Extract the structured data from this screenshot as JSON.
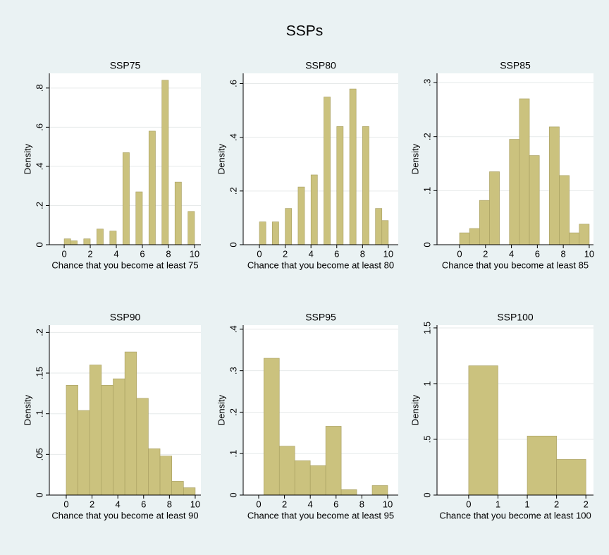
{
  "title": "SSPs",
  "chart_data": [
    {
      "type": "histogram",
      "title": "SSP75",
      "x_label": "Chance that you become at least 75",
      "y_label": "Density",
      "bins": [
        0,
        0.5,
        1,
        1.5,
        2,
        2.5,
        3,
        3.5,
        4,
        4.5,
        5,
        5.5,
        6,
        6.5,
        7,
        7.5,
        8,
        8.5,
        9,
        9.5,
        10
      ],
      "values": [
        0.03,
        0.02,
        0,
        0.03,
        0,
        0.08,
        0,
        0.07,
        0,
        0.47,
        0,
        0.27,
        0,
        0.58,
        0,
        0.84,
        0,
        0.32,
        0,
        0.17
      ],
      "color": "#cbc27e",
      "xlim": [
        -1.14,
        10.49
      ],
      "ylim": [
        0,
        0.875
      ],
      "xticks": [
        0,
        2,
        4,
        6,
        8,
        10
      ],
      "yticks": [
        0,
        {
          "value": 0.2,
          "label": ".2"
        },
        {
          "value": 0.4,
          "label": ".4"
        },
        {
          "value": 0.6,
          "label": ".6"
        },
        {
          "value": 0.8,
          "label": ".8"
        }
      ],
      "grid": true
    },
    {
      "type": "histogram",
      "title": "SSP80",
      "x_label": "Chance that you become at least 80",
      "y_label": "Density",
      "bins": [
        0,
        0.5,
        1,
        1.5,
        2,
        2.5,
        3,
        3.5,
        4,
        4.5,
        5,
        5.5,
        6,
        6.5,
        7,
        7.5,
        8,
        8.5,
        9,
        9.5,
        10
      ],
      "values": [
        0.085,
        0,
        0.085,
        0,
        0.135,
        0,
        0.215,
        0,
        0.26,
        0,
        0.55,
        0,
        0.44,
        0,
        0.58,
        0,
        0.44,
        0,
        0.135,
        0.09
      ],
      "color": "#cbc27e",
      "xlim": [
        -1.26,
        10.77
      ],
      "ylim": [
        0,
        0.638
      ],
      "xticks": [
        0,
        2,
        4,
        6,
        8,
        10
      ],
      "yticks": [
        0,
        {
          "value": 0.2,
          "label": ".2"
        },
        {
          "value": 0.4,
          "label": ".4"
        },
        {
          "value": 0.6,
          "label": ".6"
        }
      ],
      "grid": true
    },
    {
      "type": "histogram",
      "title": "SSP85",
      "x_label": "Chance that you become at least 85",
      "y_label": "Density",
      "bins": [
        0,
        0.769,
        1.538,
        2.308,
        3.077,
        3.846,
        4.615,
        5.385,
        6.154,
        6.923,
        7.692,
        8.462,
        9.231,
        10
      ],
      "values": [
        0.022,
        0.03,
        0.082,
        0.135,
        0,
        0.195,
        0.27,
        0.165,
        0,
        0.218,
        0.128,
        0.022,
        0.038
      ],
      "color": "#cbc27e",
      "xlim": [
        -1.74,
        10.33
      ],
      "ylim": [
        0,
        0.317
      ],
      "xticks": [
        0,
        2,
        4,
        6,
        8,
        10
      ],
      "yticks": [
        0,
        {
          "value": 0.1,
          "label": ".1"
        },
        {
          "value": 0.2,
          "label": ".2"
        },
        {
          "value": 0.3,
          "label": ".3"
        }
      ],
      "grid": true
    },
    {
      "type": "histogram",
      "title": "SSP90",
      "x_label": "Chance that you become at least 90",
      "y_label": "Density",
      "bins": [
        0,
        0.909,
        1.818,
        2.727,
        3.636,
        4.545,
        5.455,
        6.364,
        7.273,
        8.182,
        9.091,
        10
      ],
      "values": [
        0.135,
        0.104,
        0.16,
        0.135,
        0.143,
        0.176,
        0.119,
        0.057,
        0.048,
        0.017,
        0.009
      ],
      "color": "#cbc27e",
      "xlim": [
        -1.31,
        10.44
      ],
      "ylim": [
        0,
        0.209
      ],
      "xticks": [
        0,
        2,
        4,
        6,
        8,
        10
      ],
      "yticks": [
        0,
        {
          "value": 0.05,
          "label": ".05"
        },
        {
          "value": 0.1,
          "label": ".1"
        },
        {
          "value": 0.15,
          "label": ".15"
        },
        {
          "value": 0.2,
          "label": ".2"
        }
      ],
      "grid": true
    },
    {
      "type": "histogram",
      "title": "SSP95",
      "x_label": "Chance that you become at least 95",
      "y_label": "Density",
      "bins": [
        0.4,
        1.6,
        2.8,
        4.0,
        5.2,
        6.4,
        7.6,
        8.8,
        10.0
      ],
      "values": [
        0.33,
        0.118,
        0.083,
        0.071,
        0.166,
        0.013,
        0,
        0.023
      ],
      "color": "#cbc27e",
      "xlim": [
        -1.2,
        10.82
      ],
      "ylim": [
        0,
        0.41
      ],
      "xticks": [
        0,
        2,
        4,
        6,
        8,
        10
      ],
      "yticks": [
        0,
        {
          "value": 0.1,
          "label": ".1"
        },
        {
          "value": 0.2,
          "label": ".2"
        },
        {
          "value": 0.3,
          "label": ".3"
        },
        {
          "value": 0.4,
          "label": ".4"
        }
      ],
      "grid": true
    },
    {
      "type": "histogram",
      "title": "SSP100",
      "x_label": "Chance that you become at least 100",
      "y_label": "Density",
      "bins": [
        0,
        0.5,
        1,
        1.5,
        2
      ],
      "values": [
        1.16,
        0,
        0.53,
        0.32
      ],
      "color": "#cbc27e",
      "xlim": [
        -0.54,
        2.13
      ],
      "ylim": [
        0,
        1.525
      ],
      "xticks": [
        0,
        {
          "value": 0.5,
          "label": "1"
        },
        1,
        {
          "value": 1.5,
          "label": "2"
        },
        2
      ],
      "yticks": [
        0,
        {
          "value": 0.5,
          "label": ".5"
        },
        1,
        1.5
      ],
      "grid": true
    }
  ]
}
